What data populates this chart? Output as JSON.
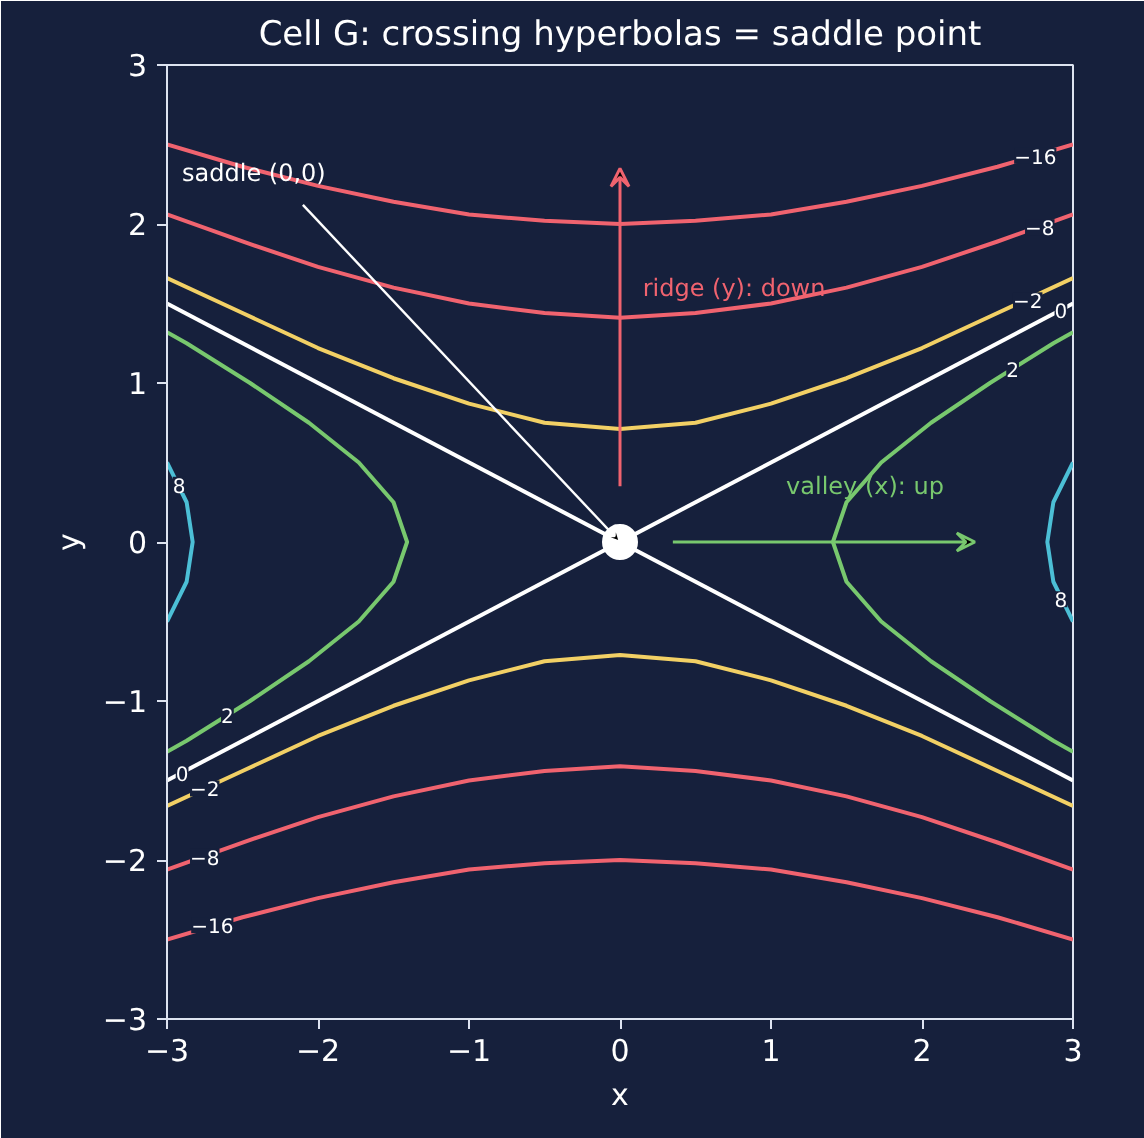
{
  "chart_data": {
    "type": "line",
    "title": "Cell G: crossing hyperbolas = saddle point",
    "xlabel": "x",
    "ylabel": "y",
    "xlim": [
      -3,
      3
    ],
    "ylim": [
      -3,
      3
    ],
    "xticks": [
      {
        "value": -3,
        "label": "−3"
      },
      {
        "value": -2,
        "label": "−2"
      },
      {
        "value": -1,
        "label": "−1"
      },
      0,
      1,
      2,
      3
    ],
    "yticks": [
      {
        "value": -3,
        "label": "−3"
      },
      {
        "value": -2,
        "label": "−2"
      },
      {
        "value": -1,
        "label": "−1"
      },
      0,
      1,
      2,
      3
    ],
    "grid": false,
    "line_style": "solid",
    "series": [
      {
        "type": "line",
        "color": "#f0636f",
        "x": [
          -3,
          -2.5,
          -2,
          -1.5,
          -1,
          -0.5,
          0,
          0.5,
          1,
          1.5,
          2,
          2.5,
          3
        ],
        "values": [
          2.5,
          2.36,
          2.24,
          2.14,
          2.06,
          2.02,
          2,
          2.02,
          2.06,
          2.14,
          2.24,
          2.36,
          2.5
        ]
      },
      {
        "type": "line",
        "color": "#f0636f",
        "x": [
          -3,
          -2.5,
          -2,
          -1.5,
          -1,
          -0.5,
          0,
          0.5,
          1,
          1.5,
          2,
          2.5,
          3
        ],
        "values": [
          -2.5,
          -2.36,
          -2.24,
          -2.14,
          -2.06,
          -2.02,
          -2,
          -2.02,
          -2.06,
          -2.14,
          -2.24,
          -2.36,
          -2.5
        ]
      },
      {
        "type": "line",
        "color": "#f0636f",
        "x": [
          -3,
          -2.5,
          -2,
          -1.5,
          -1,
          -0.5,
          0,
          0.5,
          1,
          1.5,
          2,
          2.5,
          3
        ],
        "values": [
          2.06,
          1.89,
          1.73,
          1.6,
          1.5,
          1.44,
          1.41,
          1.44,
          1.5,
          1.6,
          1.73,
          1.89,
          2.06
        ]
      },
      {
        "type": "line",
        "color": "#f0636f",
        "x": [
          -3,
          -2.5,
          -2,
          -1.5,
          -1,
          -0.5,
          0,
          0.5,
          1,
          1.5,
          2,
          2.5,
          3
        ],
        "values": [
          -2.06,
          -1.89,
          -1.73,
          -1.6,
          -1.5,
          -1.44,
          -1.41,
          -1.44,
          -1.5,
          -1.6,
          -1.73,
          -1.89,
          -2.06
        ]
      },
      {
        "type": "line",
        "color": "#f2d065",
        "x": [
          -3,
          -2.5,
          -2,
          -1.5,
          -1,
          -0.5,
          0,
          0.5,
          1,
          1.5,
          2,
          2.5,
          3
        ],
        "values": [
          1.66,
          1.44,
          1.22,
          1.03,
          0.87,
          0.75,
          0.71,
          0.75,
          0.87,
          1.03,
          1.22,
          1.44,
          1.66
        ]
      },
      {
        "type": "line",
        "color": "#f2d065",
        "x": [
          -3,
          -2.5,
          -2,
          -1.5,
          -1,
          -0.5,
          0,
          0.5,
          1,
          1.5,
          2,
          2.5,
          3
        ],
        "values": [
          -1.66,
          -1.44,
          -1.22,
          -1.03,
          -0.87,
          -0.75,
          -0.71,
          -0.75,
          -0.87,
          -1.03,
          -1.22,
          -1.44,
          -1.66
        ]
      },
      {
        "type": "line",
        "color": "#ffffff",
        "x": [
          -3,
          3
        ],
        "values": [
          -1.5,
          1.5
        ]
      },
      {
        "type": "line",
        "color": "#ffffff",
        "x": [
          -3,
          3
        ],
        "values": [
          1.5,
          -1.5
        ]
      },
      {
        "color": "#78c86e",
        "x": [
          3,
          2.87,
          2.45,
          2.06,
          1.73,
          1.5,
          1.41,
          1.5,
          1.73,
          2.06,
          2.45,
          2.87,
          3
        ],
        "values": [
          -1.32,
          -1.25,
          -1,
          -0.75,
          -0.5,
          -0.25,
          0,
          0.25,
          0.5,
          0.75,
          1,
          1.25,
          1.32
        ]
      },
      {
        "color": "#78c86e",
        "x": [
          -3,
          -2.87,
          -2.45,
          -2.06,
          -1.73,
          -1.5,
          -1.41,
          -1.5,
          -1.73,
          -2.06,
          -2.45,
          -2.87,
          -3
        ],
        "values": [
          -1.32,
          -1.25,
          -1,
          -0.75,
          -0.5,
          -0.25,
          0,
          0.25,
          0.5,
          0.75,
          1,
          1.25,
          1.32
        ]
      },
      {
        "type": "line",
        "color": "#4cbfd6",
        "x": [
          3,
          2.87,
          2.83,
          2.87,
          3
        ],
        "values": [
          -0.5,
          -0.25,
          0,
          0.25,
          0.5
        ]
      },
      {
        "type": "line",
        "color": "#4cbfd6",
        "x": [
          -3,
          -2.87,
          -2.83,
          -2.87,
          -3
        ],
        "values": [
          -0.5,
          -0.25,
          0,
          0.25,
          0.5
        ]
      },
      {
        "type": "scatter",
        "marker": "circle",
        "color": "#ffffff",
        "x": [
          0
        ],
        "values": [
          0
        ]
      }
    ],
    "annotations": [
      {
        "text": "saddle (0,0)",
        "x": 0,
        "y": 0
      },
      "ridge (y): down",
      "valley (x): up",
      {
        "text": "−16",
        "x": 2.75,
        "y": 2.43
      },
      {
        "text": "−8",
        "x": 2.78,
        "y": 1.98
      },
      {
        "text": "−2",
        "x": 2.7,
        "y": 1.52
      },
      {
        "text": "0",
        "x": 2.92,
        "y": 1.46
      },
      {
        "text": "2",
        "x": 2.6,
        "y": 1.09
      },
      {
        "text": "8",
        "x": -2.92,
        "y": 0.36
      },
      {
        "text": "8",
        "x": 2.92,
        "y": -0.36
      },
      {
        "text": "2",
        "x": -2.6,
        "y": -1.09
      },
      {
        "text": "0",
        "x": -2.9,
        "y": -1.45
      },
      {
        "text": "−2",
        "x": -2.75,
        "y": -1.55
      },
      {
        "text": "−8",
        "x": -2.75,
        "y": -1.98
      },
      {
        "text": "−16",
        "x": -2.7,
        "y": -2.41
      }
    ]
  }
}
